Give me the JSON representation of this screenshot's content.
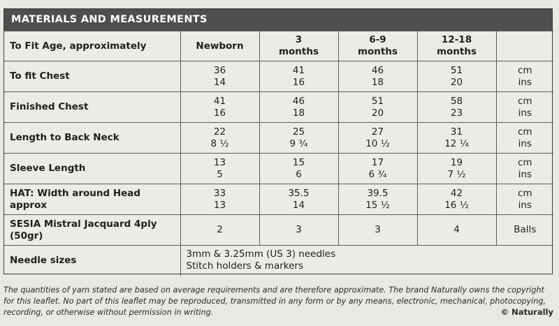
{
  "header": {
    "title": "MATERIALS AND MEASUREMENTS"
  },
  "table": {
    "age_label": "To Fit Age, approximately",
    "columns": [
      [
        "Newborn"
      ],
      [
        "3",
        "months"
      ],
      [
        "6-9",
        "months"
      ],
      [
        "12-18",
        "months"
      ]
    ],
    "rows": [
      {
        "label": [
          "To fit Chest"
        ],
        "values": [
          [
            "36",
            "14"
          ],
          [
            "41",
            "16"
          ],
          [
            "46",
            "18"
          ],
          [
            "51",
            "20"
          ]
        ],
        "units": [
          "cm",
          "ins"
        ]
      },
      {
        "label": [
          "Finished Chest"
        ],
        "values": [
          [
            "41",
            "16"
          ],
          [
            "46",
            "18"
          ],
          [
            "51",
            "20"
          ],
          [
            "58",
            "23"
          ]
        ],
        "units": [
          "cm",
          "ins"
        ]
      },
      {
        "label": [
          "Length to Back Neck"
        ],
        "values": [
          [
            "22",
            "8 ½"
          ],
          [
            "25",
            "9 ¾"
          ],
          [
            "27",
            "10 ½"
          ],
          [
            "31",
            "12 ¼"
          ]
        ],
        "units": [
          "cm",
          "ins"
        ]
      },
      {
        "label": [
          "Sleeve Length"
        ],
        "values": [
          [
            "13",
            "5"
          ],
          [
            "15",
            "6"
          ],
          [
            "17",
            "6 ¾"
          ],
          [
            "19",
            "7 ½"
          ]
        ],
        "units": [
          "cm",
          "ins"
        ]
      },
      {
        "label": [
          "HAT: Width around Head",
          "approx"
        ],
        "values": [
          [
            "33",
            "13"
          ],
          [
            "35.5",
            "14"
          ],
          [
            "39.5",
            "15 ½"
          ],
          [
            "42",
            "16 ½"
          ]
        ],
        "units": [
          "cm",
          "ins"
        ]
      },
      {
        "label": [
          "SESIA Mistral Jacquard 4ply",
          "(50gr)"
        ],
        "values": [
          [
            "2"
          ],
          [
            "3"
          ],
          [
            "3"
          ],
          [
            "4"
          ]
        ],
        "units": [
          "Balls"
        ]
      }
    ],
    "needles": {
      "label": "Needle sizes",
      "lines": [
        "3mm & 3.25mm (US 3) needles",
        "Stitch holders & markers"
      ]
    }
  },
  "footer": {
    "note": "The quantities of yarn stated are based on average requirements and are therefore approximate. The brand Naturally owns the copyright for this leaflet. No part of this leaflet may be reproduced, transmitted in any form or by any means, electronic, mechanical, photocopying, recording, or otherwise without permission in writing.",
    "copyright": "© Naturally"
  }
}
